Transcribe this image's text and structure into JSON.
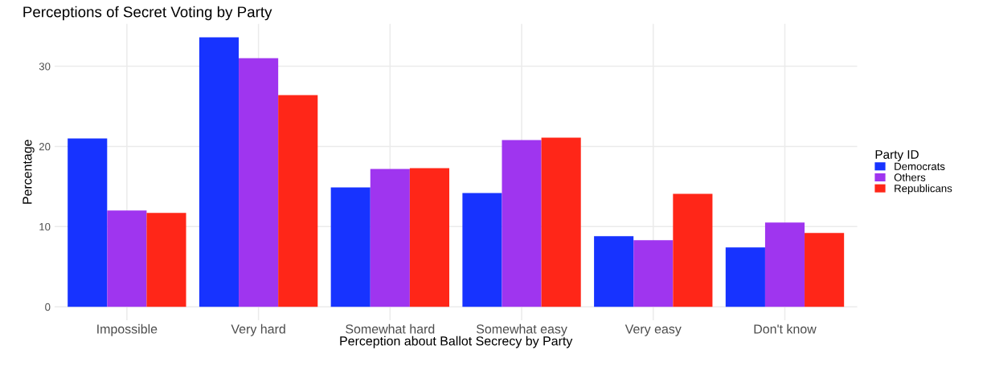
{
  "chart_data": {
    "type": "bar",
    "title": "Perceptions of Secret Voting by Party",
    "xlabel": "Perception about Ballot Secrecy by Party",
    "ylabel": "Percentage",
    "legend_title": "Party ID",
    "categories": [
      "Impossible",
      "Very hard",
      "Somewhat hard",
      "Somewhat easy",
      "Very easy",
      "Don't know"
    ],
    "series": [
      {
        "name": "Democrats",
        "color": "#1733ff",
        "values": [
          21.0,
          33.6,
          14.9,
          14.2,
          8.8,
          7.4
        ]
      },
      {
        "name": "Others",
        "color": "#9f35ef",
        "values": [
          12.0,
          31.0,
          17.2,
          20.8,
          8.3,
          10.5
        ]
      },
      {
        "name": "Republicans",
        "color": "#ff2618",
        "values": [
          11.7,
          26.4,
          17.3,
          21.1,
          14.1,
          9.2
        ]
      }
    ],
    "ylim": [
      -1.68,
      35.3
    ],
    "yticks": [
      0,
      10,
      20,
      30
    ],
    "grid": true,
    "legend": "right"
  }
}
